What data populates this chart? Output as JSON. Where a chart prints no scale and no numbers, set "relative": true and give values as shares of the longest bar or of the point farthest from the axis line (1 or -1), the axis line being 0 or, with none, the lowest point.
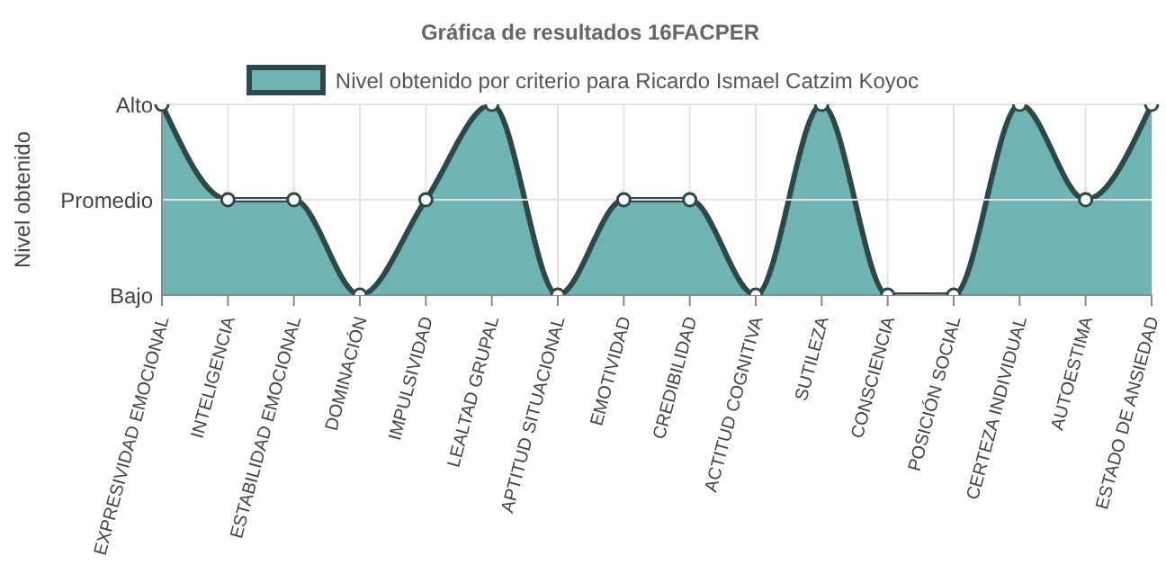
{
  "chart_data": {
    "type": "area",
    "title": "Gráfica de resultados 16FACPER",
    "ylabel": "Nivel obtenido",
    "categories": [
      "EXPRESIVIDAD EMOCIONAL",
      "INTELIGENCIA",
      "ESTABILIDAD EMOCIONAL",
      "DOMINACIÓN",
      "IMPULSIVIDAD",
      "LEALTAD GRUPAL",
      "APTITUD SITUACIONAL",
      "EMOTIVIDAD",
      "CREDIBILIDAD",
      "ACTITUD COGNITIVA",
      "SUTILEZA",
      "CONSCIENCIA",
      "POSICIÓN SOCIAL",
      "CERTEZA INDIVIDUAL",
      "AUTOESTIMA",
      "ESTADO DE ANSIEDAD"
    ],
    "series": [
      {
        "name": "Nivel obtenido por criterio para Ricardo Ismael Catzim Koyoc",
        "color": "#6fb3b5",
        "values": [
          1,
          0.5,
          0.5,
          0,
          0.5,
          1,
          0,
          0.5,
          0.5,
          0,
          1,
          0,
          0,
          1,
          0.5,
          1
        ]
      }
    ],
    "relative": true,
    "annotations": [
      "Alto",
      "Promedio",
      "Bajo"
    ],
    "grid": true,
    "legend": "top",
    "marker": "circle",
    "line_style": "solid"
  }
}
